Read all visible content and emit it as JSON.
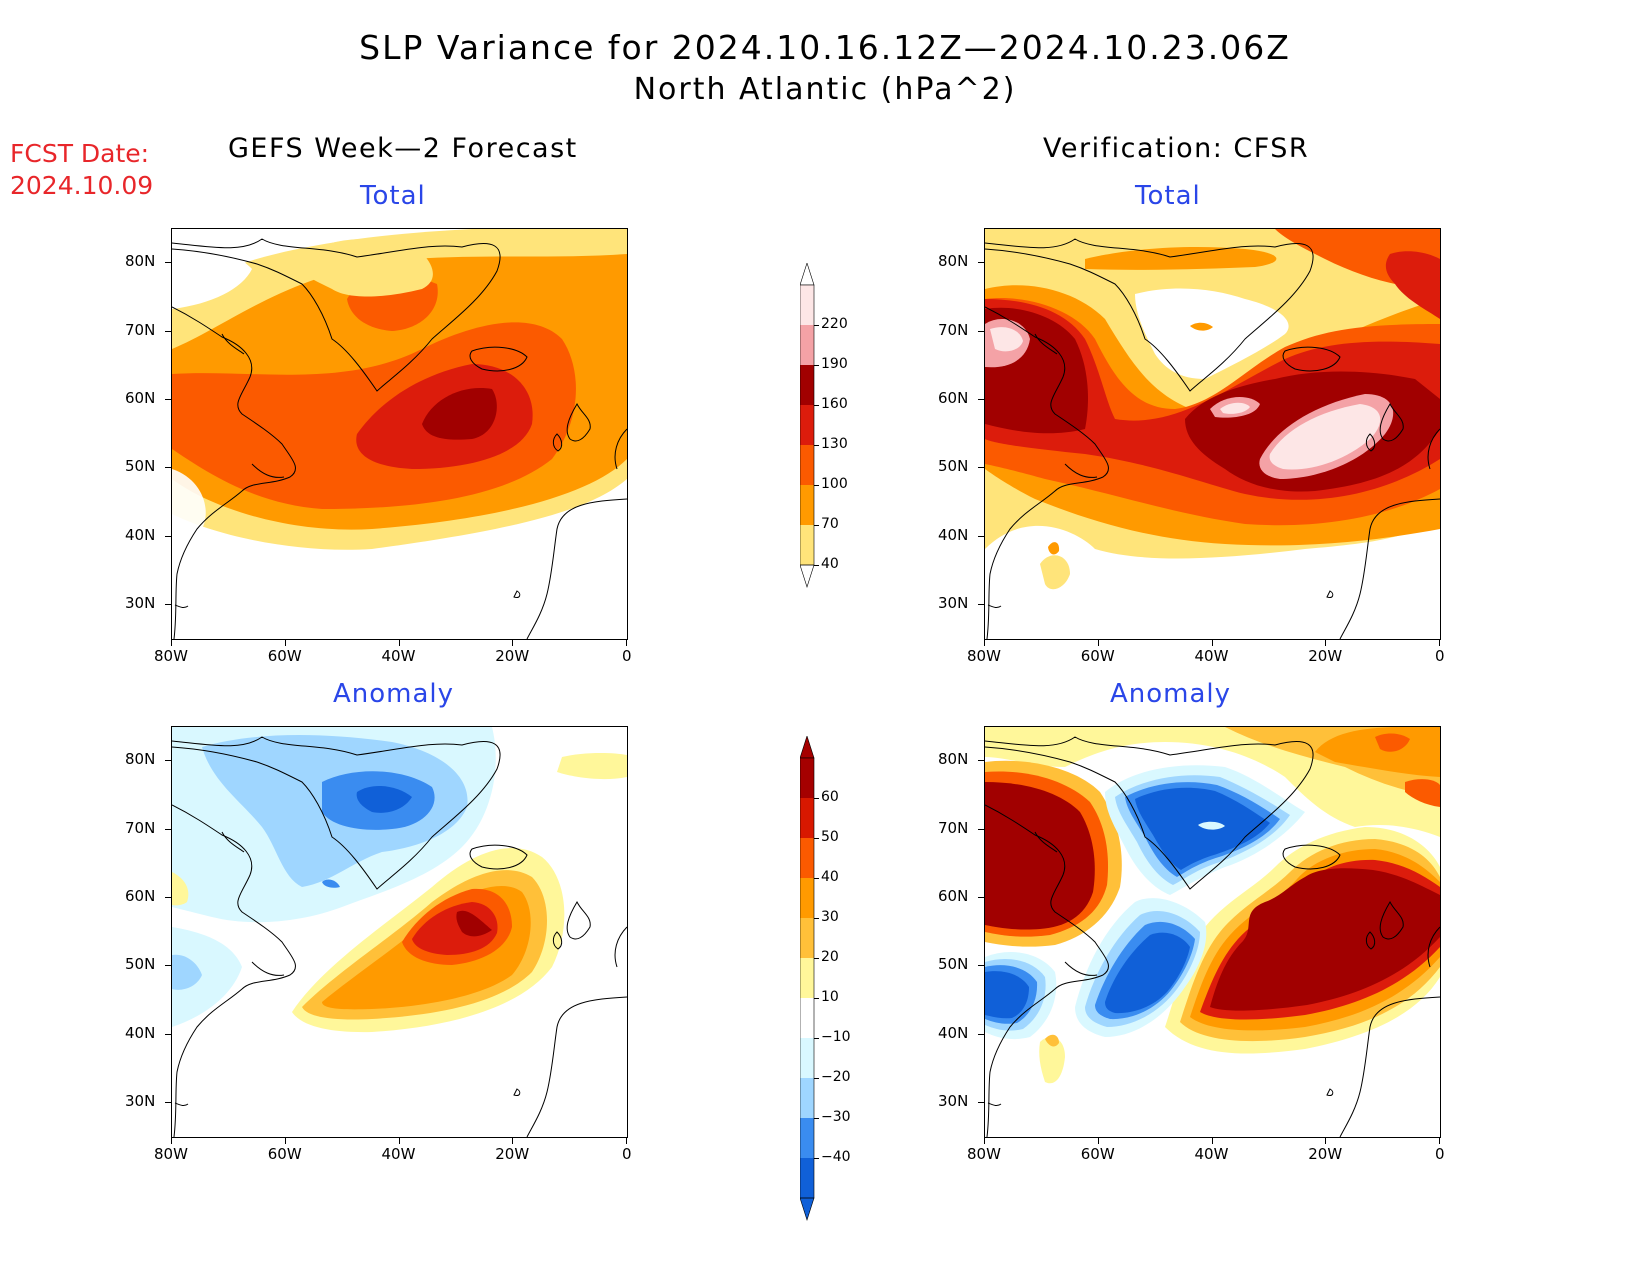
{
  "title": "SLP Variance for 2024.10.16.12Z—2024.10.23.06Z",
  "subtitle": "North Atlantic (hPa^2)",
  "fcst_date": {
    "label": "FCST Date:",
    "value": "2024.10.09"
  },
  "left_column_title": "GEFS Week—2 Forecast",
  "right_column_title": "Verification: CFSR",
  "panels": {
    "top_left": "Total",
    "top_right": "Total",
    "bottom_left": "Anomaly",
    "bottom_right": "Anomaly"
  },
  "axes": {
    "lat_labels": [
      "80N",
      "70N",
      "60N",
      "50N",
      "40N",
      "30N"
    ],
    "lon_labels": [
      "80W",
      "60W",
      "40W",
      "20W",
      "0"
    ],
    "lat_range": [
      25,
      85
    ],
    "lon_range": [
      -80,
      0
    ]
  },
  "colorbars": {
    "total": {
      "levels": [
        "220",
        "190",
        "160",
        "130",
        "100",
        "70",
        "40"
      ],
      "colors": [
        "#fde6e6",
        "#f4a2a6",
        "#a10000",
        "#dc1c0c",
        "#fb5a00",
        "#ff9a00",
        "#ffe47a"
      ]
    },
    "anomaly": {
      "levels": [
        "60",
        "50",
        "40",
        "30",
        "20",
        "10",
        "−10",
        "−20",
        "−30",
        "−40"
      ],
      "colors": [
        "#a50000",
        "#d81800",
        "#fb5a00",
        "#ff9a00",
        "#ffc039",
        "#fff79a",
        "#ffffff",
        "#d9f8ff",
        "#9fd6ff",
        "#3a8cf0",
        "#1060d8"
      ]
    }
  }
}
